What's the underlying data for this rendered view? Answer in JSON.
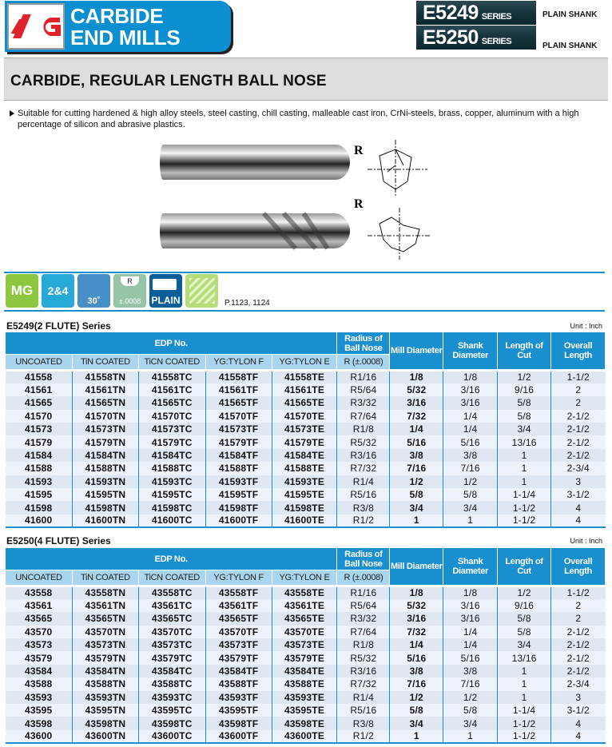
{
  "header": {
    "logo_text": "YG",
    "title_line1": "CARBIDE",
    "title_line2": "END MILLS",
    "series": [
      {
        "code": "E5249",
        "suffix": "SERIES",
        "shank": "PLAIN SHANK"
      },
      {
        "code": "E5250",
        "suffix": "SERIES",
        "shank": "PLAIN SHANK"
      }
    ]
  },
  "page_title": "CARBIDE,  REGULAR LENGTH BALL NOSE",
  "description": "Suitable for cutting hardened & high alloy steels, steel casting, chill casting, malleable cast iron, CrNi-steels, brass, copper, aluminum with a high percentage of silicon and abrasive plastics.",
  "diagram": {
    "radius_label": "R"
  },
  "icons": {
    "mg": "MG",
    "flutes": "2&4",
    "helix": "30˚",
    "radius_top": "R",
    "radius_tol": "±.0008",
    "shank": "PLAIN",
    "pages": "P.1123, 1124"
  },
  "colors": {
    "accent": "#1a8fd0",
    "mg": "#8dc63f",
    "flutes": "#26a9d6",
    "helix": "#4a90c8",
    "radius": "#96c4a6",
    "plain": "#0b5f96"
  },
  "tables": [
    {
      "title": "E5249(2 FLUTE) Series",
      "unit": "Unit : Inch",
      "headers": {
        "edp": "EDP No.",
        "radius": "Radius of Ball Nose",
        "mill": "Mill Diameter",
        "shank": "Shank Diameter",
        "loc": "Length of Cut",
        "oal": "Overall Length",
        "sub": [
          "UNCOATED",
          "TiN COATED",
          "TiCN COATED",
          "YG:TYLON F",
          "YG:TYLON E",
          "R (±.0008)"
        ]
      },
      "rows": [
        [
          "41558",
          "41558TN",
          "41558TC",
          "41558TF",
          "41558TE",
          "R1/16",
          "1/8",
          "1/8",
          "1/2",
          "1-1/2"
        ],
        [
          "41561",
          "41561TN",
          "41561TC",
          "41561TF",
          "41561TE",
          "R5/64",
          "5/32",
          "3/16",
          "9/16",
          "2"
        ],
        [
          "41565",
          "41565TN",
          "41565TC",
          "41565TF",
          "41565TE",
          "R3/32",
          "3/16",
          "3/16",
          "5/8",
          "2"
        ],
        [
          "41570",
          "41570TN",
          "41570TC",
          "41570TF",
          "41570TE",
          "R7/64",
          "7/32",
          "1/4",
          "5/8",
          "2-1/2"
        ],
        [
          "41573",
          "41573TN",
          "41573TC",
          "41573TF",
          "41573TE",
          "R1/8",
          "1/4",
          "1/4",
          "3/4",
          "2-1/2"
        ],
        [
          "41579",
          "41579TN",
          "41579TC",
          "41579TF",
          "41579TE",
          "R5/32",
          "5/16",
          "5/16",
          "13/16",
          "2-1/2"
        ],
        [
          "41584",
          "41584TN",
          "41584TC",
          "41584TF",
          "41584TE",
          "R3/16",
          "3/8",
          "3/8",
          "1",
          "2-1/2"
        ],
        [
          "41588",
          "41588TN",
          "41588TC",
          "41588TF",
          "41588TE",
          "R7/32",
          "7/16",
          "7/16",
          "1",
          "2-3/4"
        ],
        [
          "41593",
          "41593TN",
          "41593TC",
          "41593TF",
          "41593TE",
          "R1/4",
          "1/2",
          "1/2",
          "1",
          "3"
        ],
        [
          "41595",
          "41595TN",
          "41595TC",
          "41595TF",
          "41595TE",
          "R5/16",
          "5/8",
          "5/8",
          "1-1/4",
          "3-1/2"
        ],
        [
          "41598",
          "41598TN",
          "41598TC",
          "41598TF",
          "41598TE",
          "R3/8",
          "3/4",
          "3/4",
          "1-1/2",
          "4"
        ],
        [
          "41600",
          "41600TN",
          "41600TC",
          "41600TF",
          "41600TE",
          "R1/2",
          "1",
          "1",
          "1-1/2",
          "4"
        ]
      ]
    },
    {
      "title": "E5250(4 FLUTE) Series",
      "unit": "Unit : Inch",
      "headers": {
        "edp": "EDP No.",
        "radius": "Radius of Ball Nose",
        "mill": "Mill Diameter",
        "shank": "Shank Diameter",
        "loc": "Length of Cut",
        "oal": "Overall Length",
        "sub": [
          "UNCOATED",
          "TiN COATED",
          "TiCN COATED",
          "YG:TYLON F",
          "YG:TYLON E",
          "R (±.0008)"
        ]
      },
      "rows": [
        [
          "43558",
          "43558TN",
          "43558TC",
          "43558TF",
          "43558TE",
          "R1/16",
          "1/8",
          "1/8",
          "1/2",
          "1-1/2"
        ],
        [
          "43561",
          "43561TN",
          "43561TC",
          "43561TF",
          "43561TE",
          "R5/64",
          "5/32",
          "3/16",
          "9/16",
          "2"
        ],
        [
          "43565",
          "43565TN",
          "43565TC",
          "43565TF",
          "43565TE",
          "R3/32",
          "3/16",
          "3/16",
          "5/8",
          "2"
        ],
        [
          "43570",
          "43570TN",
          "43570TC",
          "43570TF",
          "43570TE",
          "R7/64",
          "7/32",
          "1/4",
          "5/8",
          "2-1/2"
        ],
        [
          "43573",
          "43573TN",
          "43573TC",
          "43573TF",
          "43573TE",
          "R1/8",
          "1/4",
          "1/4",
          "3/4",
          "2-1/2"
        ],
        [
          "43579",
          "43579TN",
          "43579TC",
          "43579TF",
          "43579TE",
          "R5/32",
          "5/16",
          "5/16",
          "13/16",
          "2-1/2"
        ],
        [
          "43584",
          "43584TN",
          "43584TC",
          "43584TF",
          "43584TE",
          "R3/16",
          "3/8",
          "3/8",
          "1",
          "2-1/2"
        ],
        [
          "43588",
          "43588TN",
          "43588TC",
          "43588TF",
          "43588TE",
          "R7/32",
          "7/16",
          "7/16",
          "1",
          "2-3/4"
        ],
        [
          "43593",
          "43593TN",
          "43593TC",
          "43593TF",
          "43593TE",
          "R1/4",
          "1/2",
          "1/2",
          "1",
          "3"
        ],
        [
          "43595",
          "43595TN",
          "43595TC",
          "43595TF",
          "43595TE",
          "R5/16",
          "5/8",
          "5/8",
          "1-1/4",
          "3-1/2"
        ],
        [
          "43598",
          "43598TN",
          "43598TC",
          "43598TF",
          "43598TE",
          "R3/8",
          "3/4",
          "3/4",
          "1-1/2",
          "4"
        ],
        [
          "43600",
          "43600TN",
          "43600TC",
          "43600TF",
          "43600TE",
          "R1/2",
          "1",
          "1",
          "1-1/2",
          "4"
        ]
      ]
    }
  ]
}
